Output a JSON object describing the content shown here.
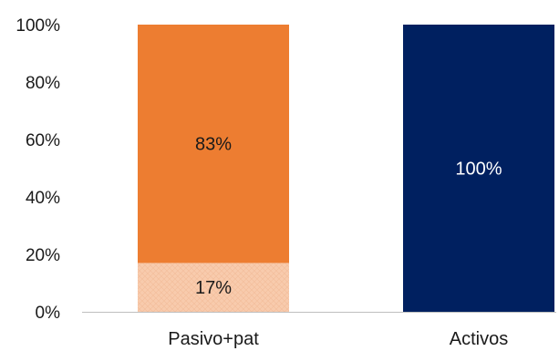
{
  "chart_data": {
    "type": "bar",
    "stacked": true,
    "percent_stacked": true,
    "categories": [
      "Pasivo+pat",
      "Activos"
    ],
    "series": [
      {
        "values": [
          17,
          null
        ],
        "labels": [
          "17%",
          ""
        ],
        "color": "#f8cbad",
        "pattern": "crosshatch",
        "label_color": "#1a1a1a"
      },
      {
        "values": [
          83,
          null
        ],
        "labels": [
          "83%",
          ""
        ],
        "color": "#ed7d31",
        "label_color": "#1a1a1a"
      },
      {
        "values": [
          null,
          100
        ],
        "labels": [
          "",
          "100%"
        ],
        "color": "#002060",
        "label_color": "#ffffff"
      }
    ],
    "y_ticks": [
      "0%",
      "20%",
      "40%",
      "60%",
      "80%",
      "100%"
    ],
    "ylim": [
      0,
      100
    ],
    "grid": false,
    "legend": "none",
    "title": "",
    "xlabel": "",
    "ylabel": ""
  }
}
